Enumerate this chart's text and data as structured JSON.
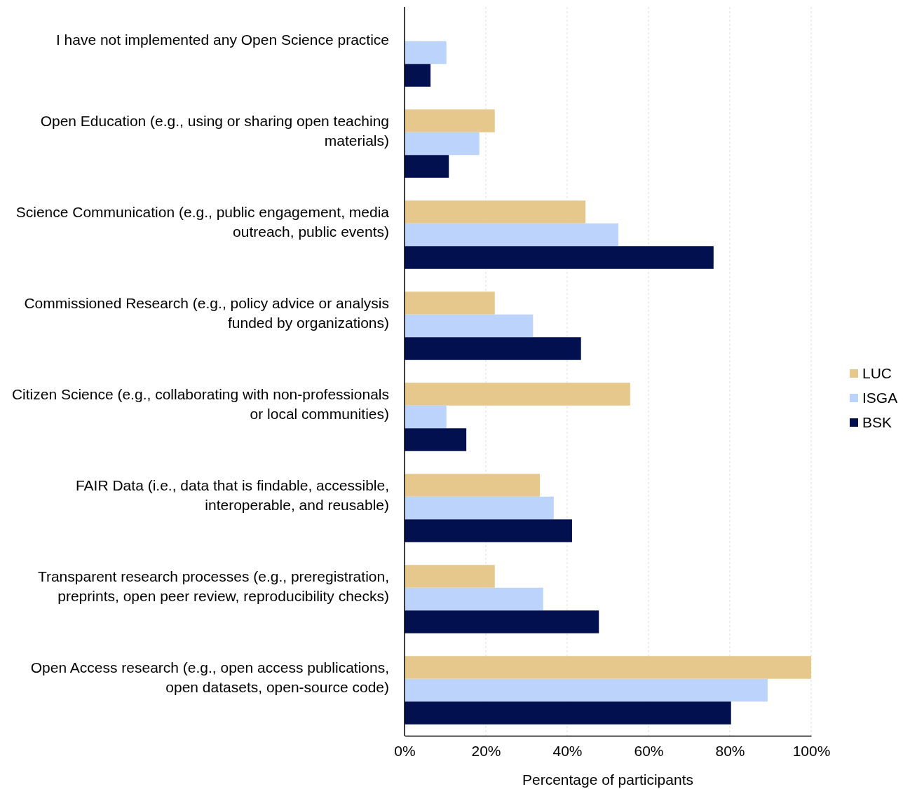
{
  "chart_data": {
    "type": "bar",
    "orientation": "horizontal",
    "xlabel": "Percentage of participants",
    "categories": [
      "I have not implemented any Open Science practice",
      "Open Education (e.g., using or sharing open teaching materials)",
      "Science Communication (e.g., public engagement, media outreach, public events)",
      "Commissioned Research (e.g., policy advice or analysis funded by organizations)",
      "Citizen Science (e.g., collaborating with non-professionals or local communities)",
      "FAIR Data (i.e., data that is findable, accessible, interoperable, and reusable)",
      "Transparent research processes (e.g., preregistration, preprints, open peer review, reproducibility checks)",
      "Open Access research (e.g., open access publications, open datasets, open-source code)"
    ],
    "series": [
      {
        "name": "LUC",
        "color": "#e6c88c",
        "values": [
          0,
          22.2,
          44.5,
          22.2,
          55.5,
          33.3,
          22.2,
          100
        ]
      },
      {
        "name": "ISGA",
        "color": "#bcd4fc",
        "values": [
          10.3,
          18.4,
          52.6,
          31.6,
          10.3,
          36.7,
          34.1,
          89.3
        ]
      },
      {
        "name": "BSK",
        "color": "#03104f",
        "values": [
          6.4,
          10.9,
          76.0,
          43.4,
          15.2,
          41.2,
          47.8,
          80.3
        ]
      }
    ],
    "xlim": [
      0,
      100
    ],
    "xticks": [
      {
        "value": 0,
        "label": "0%"
      },
      {
        "value": 20,
        "label": "20%"
      },
      {
        "value": 40,
        "label": "40%"
      },
      {
        "value": 60,
        "label": "60%"
      },
      {
        "value": 80,
        "label": "80%"
      },
      {
        "value": 100,
        "label": "100%"
      }
    ],
    "grid": "x",
    "legend": "right"
  }
}
